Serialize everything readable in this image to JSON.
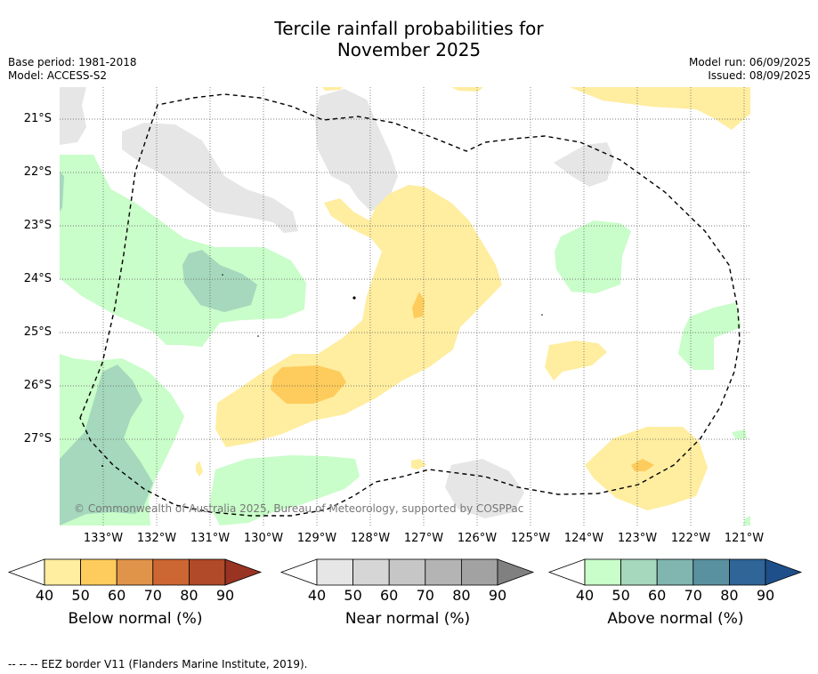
{
  "title": "Tercile rainfall probabilities for November 2025",
  "title_line1": "Tercile rainfall probabilities for",
  "title_line2": "November 2025",
  "base_period": "Base period: 1981-2018",
  "model": "Model: ACCESS-S2",
  "model_run": "Model run: 06/09/2025",
  "issued": "Issued: 08/09/2025",
  "copyright": "© Commonwealth of Australia 2025, Bureau of Meteorology, supported by COSPPac",
  "footnote": "--  --  -- EEZ border V11 (Flanders Marine Institute, 2019).",
  "map": {
    "lat_labels": [
      "21°S",
      "22°S",
      "23°S",
      "24°S",
      "25°S",
      "26°S",
      "27°S"
    ],
    "lon_labels": [
      "133°W",
      "132°W",
      "131°W",
      "130°W",
      "129°W",
      "128°W",
      "127°W",
      "126°W",
      "125°W",
      "124°W",
      "123°W",
      "122°W",
      "121°W"
    ]
  },
  "colorbars": [
    {
      "title": "Below normal (%)",
      "ticks": [
        "40",
        "50",
        "60",
        "70",
        "80",
        "90"
      ],
      "colors": [
        "#ffffff",
        "#ffeda0",
        "#fecc5c",
        "#e0944a",
        "#cc6633",
        "#b04a28",
        "#993322"
      ]
    },
    {
      "title": "Near normal (%)",
      "ticks": [
        "40",
        "50",
        "60",
        "70",
        "80",
        "90"
      ],
      "colors": [
        "#ffffff",
        "#e6e6e6",
        "#d6d6d6",
        "#c6c6c6",
        "#b4b4b4",
        "#a2a2a2",
        "#808080"
      ]
    },
    {
      "title": "Above normal (%)",
      "ticks": [
        "40",
        "50",
        "60",
        "70",
        "80",
        "90"
      ],
      "colors": [
        "#ffffff",
        "#c9fdc9",
        "#a5d8bc",
        "#80b5b0",
        "#5a91a0",
        "#2f6597",
        "#1e4f8a"
      ]
    }
  ]
}
